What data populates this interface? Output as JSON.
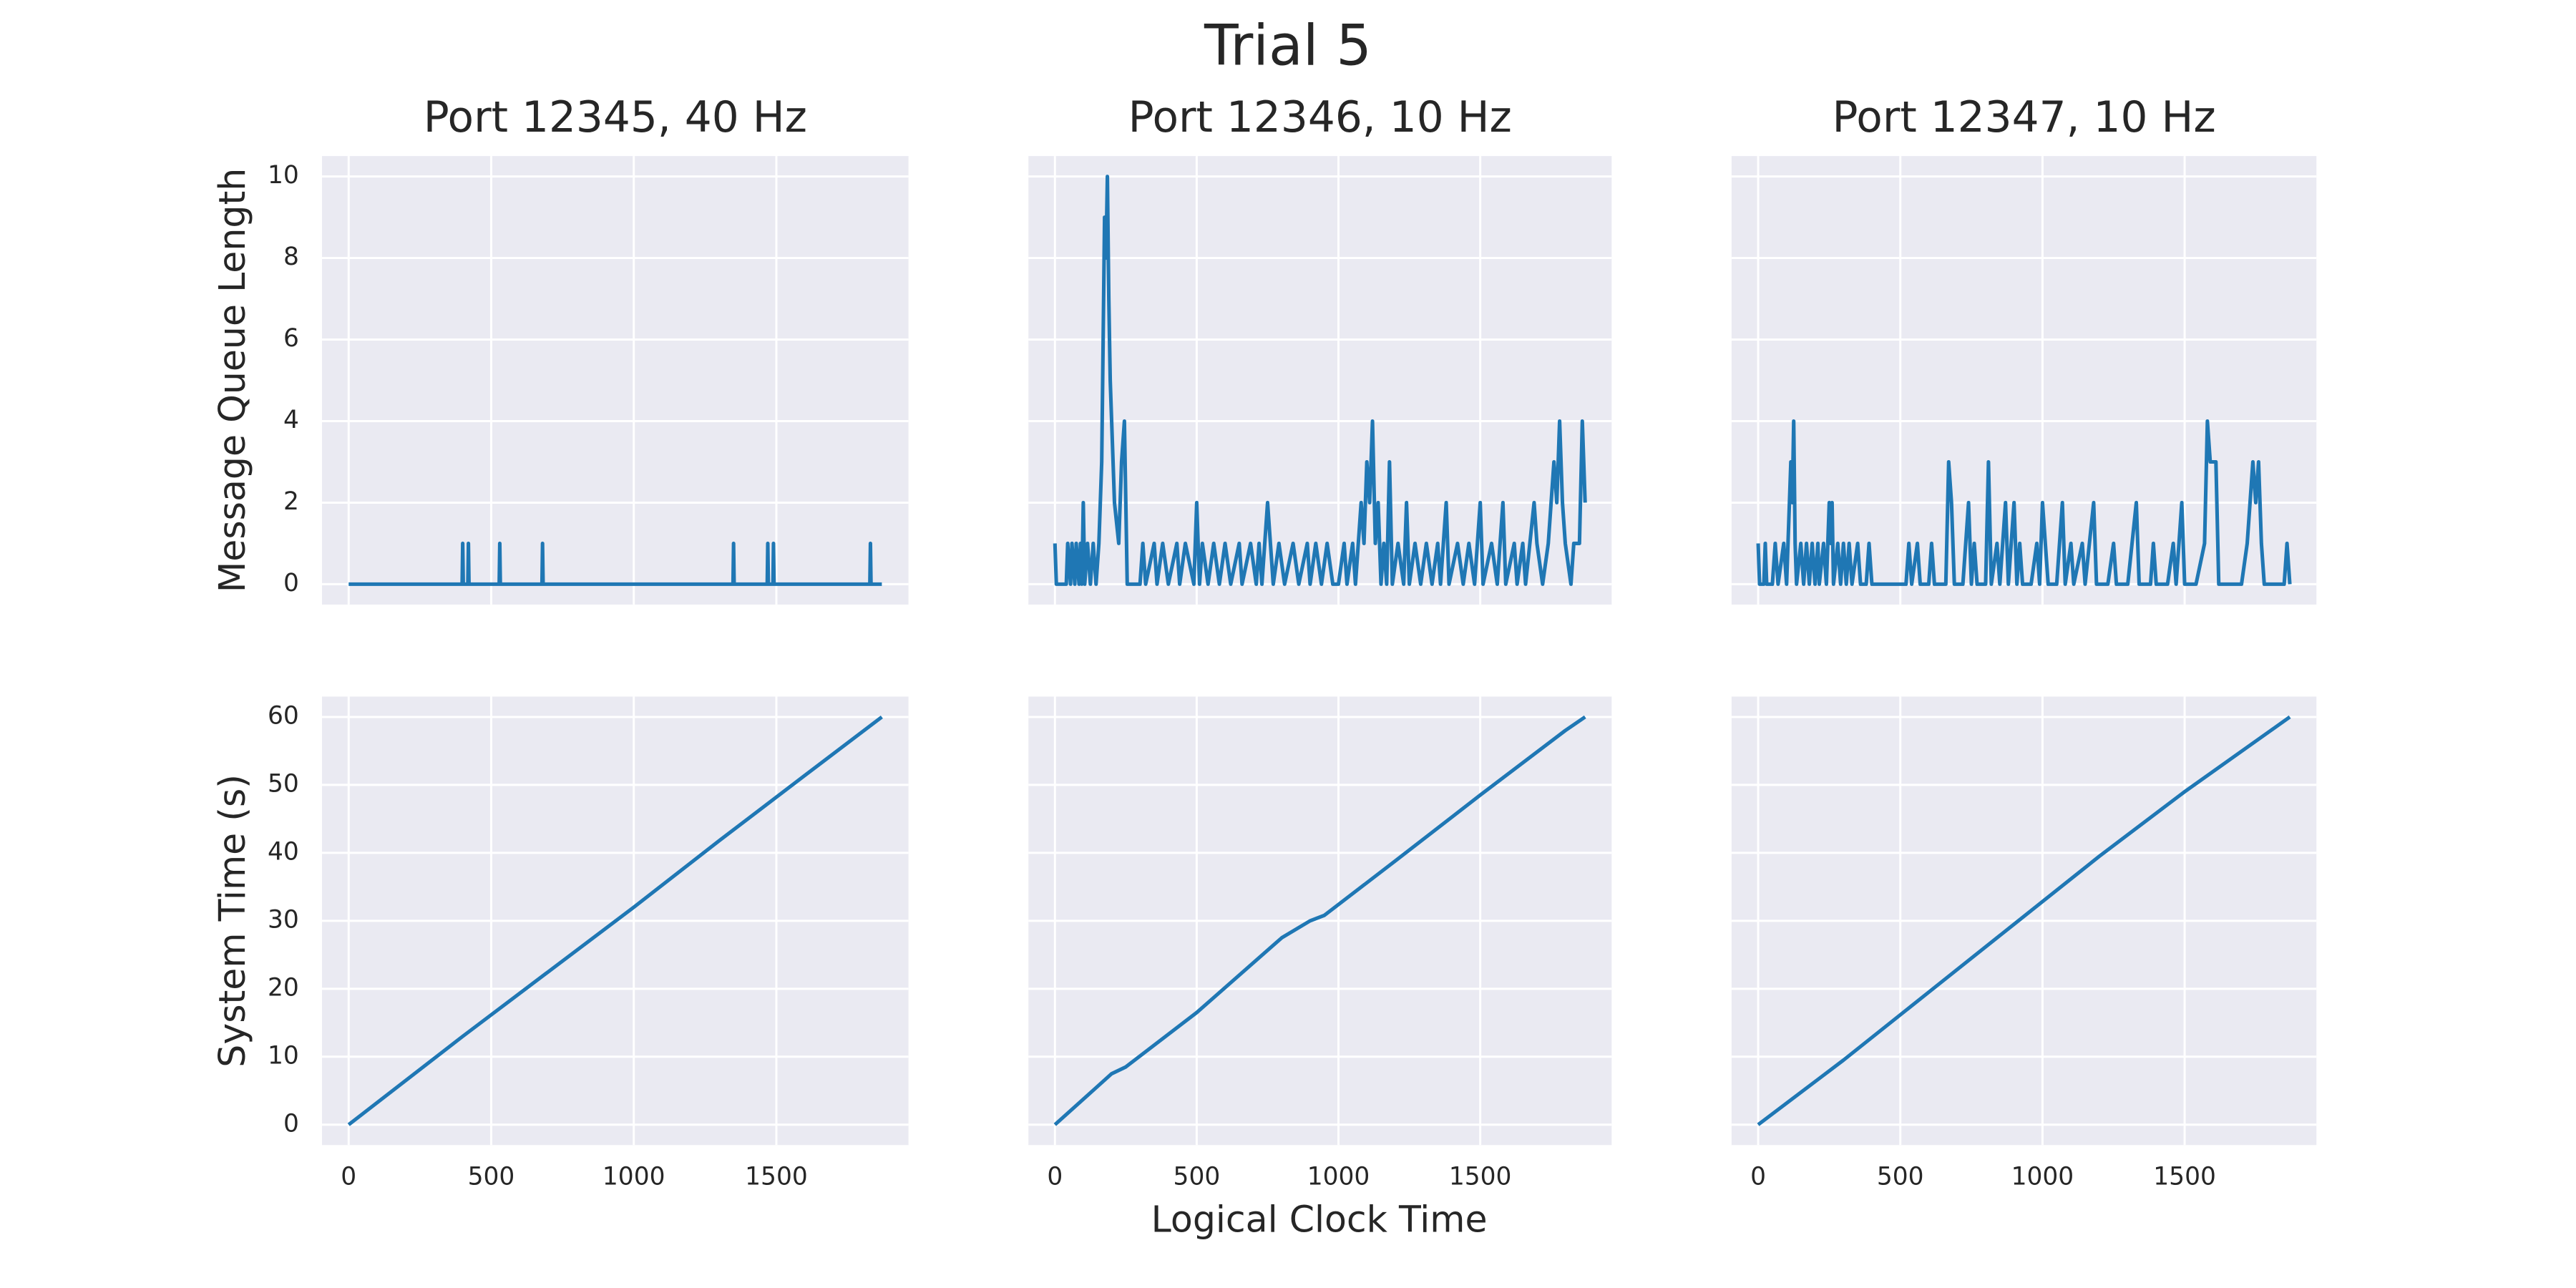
{
  "title": "Trial 5",
  "x_label": "Logical Clock Time",
  "chart_data": [
    {
      "type": "line",
      "title": "Port 12345, 40 Hz",
      "y_label": "Message Queue Length",
      "color": "#1f77b4",
      "grid": true,
      "xlim": [
        -93.5,
        1963.5
      ],
      "xticks": [
        0,
        500,
        1000,
        1500
      ],
      "ylim": [
        -0.5,
        10.5
      ],
      "yticks": [
        0,
        2,
        4,
        6,
        8,
        10
      ],
      "x": [
        0,
        398,
        400,
        402,
        418,
        420,
        422,
        528,
        530,
        532,
        678,
        680,
        682,
        1348,
        1350,
        1352,
        1468,
        1470,
        1472,
        1488,
        1490,
        1492,
        1828,
        1830,
        1832,
        1870
      ],
      "values": [
        0,
        0,
        1,
        0,
        0,
        1,
        0,
        0,
        1,
        0,
        0,
        1,
        0,
        0,
        1,
        0,
        0,
        1,
        0,
        0,
        1,
        0,
        0,
        1,
        0,
        0
      ]
    },
    {
      "type": "line",
      "title": "Port 12346, 10 Hz",
      "color": "#1f77b4",
      "grid": true,
      "xlim": [
        -93.5,
        1963.5
      ],
      "xticks": [
        0,
        500,
        1000,
        1500
      ],
      "ylim": [
        -0.5,
        10.5
      ],
      "yticks": [
        0,
        2,
        4,
        6,
        8,
        10
      ],
      "x": [
        0,
        5,
        40,
        45,
        55,
        60,
        70,
        75,
        85,
        90,
        95,
        100,
        105,
        115,
        125,
        135,
        145,
        155,
        165,
        170,
        175,
        180,
        185,
        190,
        195,
        200,
        210,
        225,
        235,
        245,
        255,
        300,
        310,
        320,
        350,
        360,
        380,
        400,
        430,
        440,
        460,
        490,
        500,
        510,
        520,
        540,
        560,
        580,
        600,
        620,
        650,
        660,
        690,
        710,
        720,
        730,
        750,
        770,
        790,
        810,
        840,
        860,
        890,
        900,
        920,
        940,
        960,
        980,
        1000,
        1020,
        1030,
        1050,
        1060,
        1080,
        1090,
        1100,
        1110,
        1120,
        1130,
        1140,
        1150,
        1160,
        1170,
        1180,
        1190,
        1210,
        1230,
        1240,
        1250,
        1270,
        1290,
        1310,
        1330,
        1350,
        1360,
        1380,
        1390,
        1420,
        1440,
        1460,
        1480,
        1500,
        1510,
        1540,
        1560,
        1580,
        1590,
        1620,
        1630,
        1650,
        1660,
        1690,
        1700,
        1720,
        1740,
        1760,
        1770,
        1780,
        1790,
        1800,
        1820,
        1830,
        1850,
        1860,
        1870
      ],
      "values": [
        1,
        0,
        0,
        1,
        0,
        1,
        0,
        1,
        0,
        1,
        0,
        2,
        0,
        1,
        0,
        1,
        0,
        1,
        3,
        6,
        9,
        8,
        10,
        7,
        5,
        4,
        2,
        1,
        3,
        4,
        0,
        0,
        1,
        0,
        1,
        0,
        1,
        0,
        1,
        0,
        1,
        0,
        2,
        0,
        1,
        0,
        1,
        0,
        1,
        0,
        1,
        0,
        1,
        0,
        1,
        0,
        2,
        0,
        1,
        0,
        1,
        0,
        1,
        0,
        1,
        0,
        1,
        0,
        0,
        1,
        0,
        1,
        0,
        2,
        1,
        3,
        2,
        4,
        1,
        2,
        0,
        1,
        0,
        3,
        0,
        1,
        0,
        2,
        0,
        1,
        0,
        1,
        0,
        1,
        0,
        2,
        0,
        1,
        0,
        1,
        0,
        2,
        0,
        1,
        0,
        2,
        0,
        1,
        0,
        1,
        0,
        2,
        1,
        0,
        1,
        3,
        2,
        4,
        2,
        1,
        0,
        1,
        1,
        4,
        2
      ]
    },
    {
      "type": "line",
      "title": "Port 12347, 10 Hz",
      "color": "#1f77b4",
      "grid": true,
      "xlim": [
        -93.5,
        1963.5
      ],
      "xticks": [
        0,
        500,
        1000,
        1500
      ],
      "ylim": [
        -0.5,
        10.5
      ],
      "yticks": [
        0,
        2,
        4,
        6,
        8,
        10
      ],
      "x": [
        0,
        5,
        20,
        25,
        30,
        50,
        60,
        70,
        90,
        100,
        110,
        115,
        120,
        125,
        130,
        135,
        150,
        160,
        170,
        180,
        190,
        200,
        210,
        215,
        230,
        240,
        250,
        255,
        260,
        265,
        280,
        290,
        300,
        310,
        320,
        330,
        350,
        360,
        380,
        390,
        400,
        520,
        530,
        540,
        560,
        570,
        600,
        610,
        620,
        660,
        670,
        680,
        690,
        720,
        740,
        750,
        760,
        770,
        800,
        810,
        820,
        840,
        850,
        870,
        880,
        900,
        910,
        920,
        930,
        960,
        980,
        990,
        1000,
        1010,
        1020,
        1050,
        1070,
        1080,
        1100,
        1110,
        1140,
        1150,
        1180,
        1190,
        1230,
        1250,
        1260,
        1300,
        1330,
        1340,
        1380,
        1390,
        1400,
        1440,
        1460,
        1470,
        1490,
        1500,
        1540,
        1570,
        1580,
        1590,
        1600,
        1610,
        1620,
        1700,
        1720,
        1730,
        1740,
        1750,
        1760,
        1770,
        1780,
        1850,
        1860,
        1870
      ],
      "values": [
        1,
        0,
        0,
        1,
        0,
        0,
        1,
        0,
        1,
        0,
        2,
        3,
        2,
        4,
        1,
        0,
        1,
        0,
        1,
        0,
        1,
        0,
        1,
        0,
        1,
        0,
        2,
        1,
        2,
        0,
        1,
        0,
        1,
        0,
        1,
        0,
        1,
        0,
        0,
        1,
        0,
        0,
        1,
        0,
        1,
        0,
        0,
        1,
        0,
        0,
        3,
        2,
        0,
        0,
        2,
        0,
        1,
        0,
        0,
        3,
        0,
        1,
        0,
        2,
        0,
        2,
        0,
        1,
        0,
        0,
        1,
        0,
        2,
        1,
        0,
        0,
        2,
        0,
        1,
        0,
        1,
        0,
        2,
        0,
        0,
        1,
        0,
        0,
        2,
        0,
        0,
        1,
        0,
        0,
        1,
        0,
        2,
        0,
        0,
        1,
        4,
        3,
        3,
        3,
        0,
        0,
        1,
        2,
        3,
        2,
        3,
        1,
        0,
        0,
        1,
        0
      ]
    },
    {
      "type": "line",
      "y_label": "System Time (s)",
      "color": "#1f77b4",
      "grid": true,
      "xlim": [
        -93.5,
        1963.5
      ],
      "xticks": [
        0,
        500,
        1000,
        1500
      ],
      "ylim": [
        -3,
        63
      ],
      "yticks": [
        0,
        10,
        20,
        30,
        40,
        50,
        60
      ],
      "x": [
        0,
        400,
        700,
        1000,
        1300,
        1600,
        1870
      ],
      "values": [
        0,
        13,
        22.5,
        32,
        41.8,
        51.4,
        60
      ]
    },
    {
      "type": "line",
      "color": "#1f77b4",
      "grid": true,
      "xlim": [
        -93.5,
        1963.5
      ],
      "xticks": [
        0,
        500,
        1000,
        1500
      ],
      "ylim": [
        -3,
        63
      ],
      "yticks": [
        0,
        10,
        20,
        30,
        40,
        50,
        60
      ],
      "x": [
        0,
        200,
        250,
        500,
        800,
        900,
        950,
        1200,
        1500,
        1800,
        1870
      ],
      "values": [
        0,
        7.5,
        8.5,
        16.5,
        27.5,
        30,
        30.8,
        38.8,
        48.5,
        58,
        60
      ]
    },
    {
      "type": "line",
      "color": "#1f77b4",
      "grid": true,
      "xlim": [
        -93.5,
        1963.5
      ],
      "xticks": [
        0,
        500,
        1000,
        1500
      ],
      "ylim": [
        -3,
        63
      ],
      "yticks": [
        0,
        10,
        20,
        30,
        40,
        50,
        60
      ],
      "x": [
        0,
        300,
        600,
        900,
        1200,
        1500,
        1870
      ],
      "values": [
        0,
        9.5,
        19.5,
        29.5,
        39.5,
        49,
        60
      ]
    }
  ]
}
